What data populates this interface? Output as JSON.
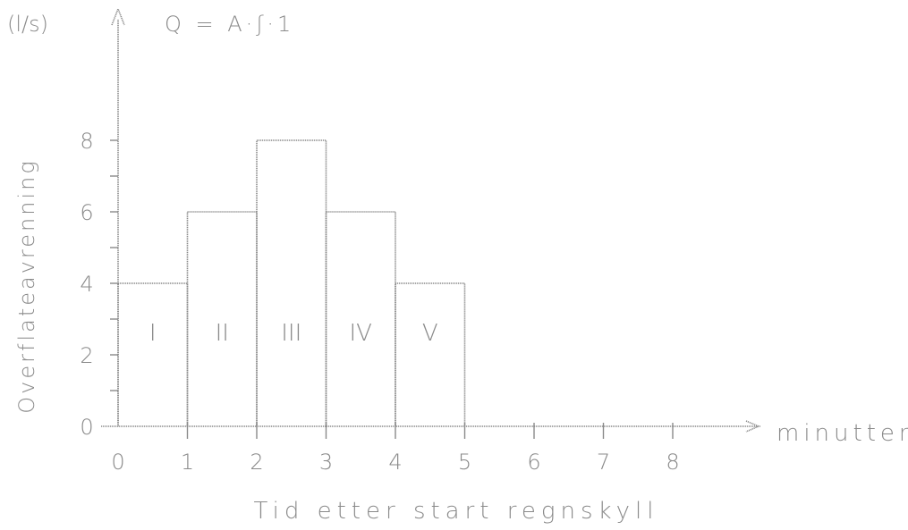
{
  "chart_data": {
    "type": "bar",
    "categories": [
      "I",
      "II",
      "III",
      "IV",
      "V"
    ],
    "x_intervals": [
      [
        0,
        1
      ],
      [
        1,
        2
      ],
      [
        2,
        3
      ],
      [
        3,
        4
      ],
      [
        4,
        5
      ]
    ],
    "values": [
      4,
      6,
      8,
      6,
      4
    ],
    "title": "Q = A·ʃ·1",
    "xlabel": "Tid etter start regnskyll",
    "x_unit": "minutter",
    "ylabel": "Overflateavrenning",
    "y_unit": "(l/s)",
    "xlim": [
      0,
      8
    ],
    "ylim": [
      0,
      8
    ],
    "x_ticks": [
      "0",
      "1",
      "2",
      "3",
      "4",
      "5",
      "6",
      "7",
      "8"
    ],
    "y_ticks": [
      "0",
      "2",
      "4",
      "6",
      "8"
    ],
    "grid": false,
    "legend": "none",
    "colors": {
      "ink": "#8a8a8a",
      "background": "#ffffff"
    }
  }
}
